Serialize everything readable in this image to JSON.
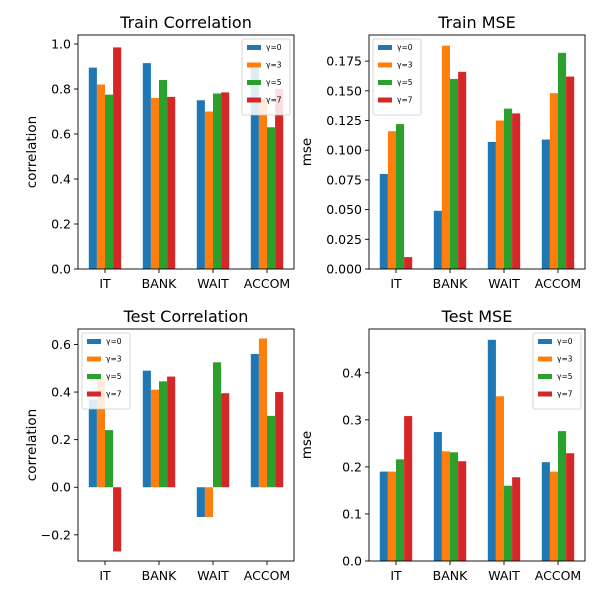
{
  "chart_data": [
    {
      "type": "bar",
      "title": "Train Correlation",
      "xlabel": "",
      "ylabel": "correlation",
      "categories": [
        "IT",
        "BANK",
        "WAIT",
        "ACCOM"
      ],
      "ylim": [
        0.0,
        1.04
      ],
      "yticks": [
        0.0,
        0.2,
        0.4,
        0.6,
        0.8,
        1.0
      ],
      "ytick_labels": [
        "0.0",
        "0.2",
        "0.4",
        "0.6",
        "0.8",
        "1.0"
      ],
      "legend_loc": "upper right",
      "series": [
        {
          "name": "γ=0",
          "color": "#1f77b4",
          "values": [
            0.895,
            0.915,
            0.75,
            0.9
          ]
        },
        {
          "name": "γ=3",
          "color": "#ff7f0e",
          "values": [
            0.82,
            0.76,
            0.7,
            0.75
          ]
        },
        {
          "name": "γ=5",
          "color": "#2ca02c",
          "values": [
            0.775,
            0.84,
            0.78,
            0.63
          ]
        },
        {
          "name": "γ=7",
          "color": "#d62728",
          "values": [
            0.985,
            0.765,
            0.785,
            0.8
          ]
        }
      ]
    },
    {
      "type": "bar",
      "title": "Train MSE",
      "xlabel": "",
      "ylabel": "mse",
      "categories": [
        "IT",
        "BANK",
        "WAIT",
        "ACCOM"
      ],
      "ylim": [
        0.0,
        0.197
      ],
      "yticks": [
        0.0,
        0.025,
        0.05,
        0.075,
        0.1,
        0.125,
        0.15,
        0.175
      ],
      "ytick_labels": [
        "0.000",
        "0.025",
        "0.050",
        "0.075",
        "0.100",
        "0.125",
        "0.150",
        "0.175"
      ],
      "legend_loc": "upper left",
      "series": [
        {
          "name": "γ=0",
          "color": "#1f77b4",
          "values": [
            0.08,
            0.049,
            0.107,
            0.109
          ]
        },
        {
          "name": "γ=3",
          "color": "#ff7f0e",
          "values": [
            0.116,
            0.188,
            0.125,
            0.148
          ]
        },
        {
          "name": "γ=5",
          "color": "#2ca02c",
          "values": [
            0.122,
            0.16,
            0.135,
            0.182
          ]
        },
        {
          "name": "γ=7",
          "color": "#d62728",
          "values": [
            0.01,
            0.166,
            0.131,
            0.162
          ]
        }
      ]
    },
    {
      "type": "bar",
      "title": "Test Correlation",
      "xlabel": "",
      "ylabel": "correlation",
      "categories": [
        "IT",
        "BANK",
        "WAIT",
        "ACCOM"
      ],
      "ylim": [
        -0.31,
        0.665
      ],
      "yticks": [
        -0.2,
        0.0,
        0.2,
        0.4,
        0.6
      ],
      "ytick_labels": [
        "−0.2",
        "0.0",
        "0.2",
        "0.4",
        "0.6"
      ],
      "legend_loc": "upper left",
      "series": [
        {
          "name": "γ=0",
          "color": "#1f77b4",
          "values": [
            0.37,
            0.49,
            -0.125,
            0.56
          ]
        },
        {
          "name": "γ=3",
          "color": "#ff7f0e",
          "values": [
            0.46,
            0.41,
            -0.125,
            0.625
          ]
        },
        {
          "name": "γ=5",
          "color": "#2ca02c",
          "values": [
            0.24,
            0.445,
            0.525,
            0.3
          ]
        },
        {
          "name": "γ=7",
          "color": "#d62728",
          "values": [
            -0.27,
            0.465,
            0.395,
            0.4
          ]
        }
      ]
    },
    {
      "type": "bar",
      "title": "Test MSE",
      "xlabel": "",
      "ylabel": "mse",
      "categories": [
        "IT",
        "BANK",
        "WAIT",
        "ACCOM"
      ],
      "ylim": [
        0.0,
        0.493
      ],
      "yticks": [
        0.0,
        0.1,
        0.2,
        0.3,
        0.4
      ],
      "ytick_labels": [
        "0.0",
        "0.1",
        "0.2",
        "0.3",
        "0.4"
      ],
      "legend_loc": "upper right",
      "series": [
        {
          "name": "γ=0",
          "color": "#1f77b4",
          "values": [
            0.19,
            0.274,
            0.47,
            0.21
          ]
        },
        {
          "name": "γ=3",
          "color": "#ff7f0e",
          "values": [
            0.19,
            0.233,
            0.35,
            0.19
          ]
        },
        {
          "name": "γ=5",
          "color": "#2ca02c",
          "values": [
            0.216,
            0.231,
            0.16,
            0.276
          ]
        },
        {
          "name": "γ=7",
          "color": "#d62728",
          "values": [
            0.308,
            0.212,
            0.178,
            0.229
          ]
        }
      ]
    }
  ]
}
